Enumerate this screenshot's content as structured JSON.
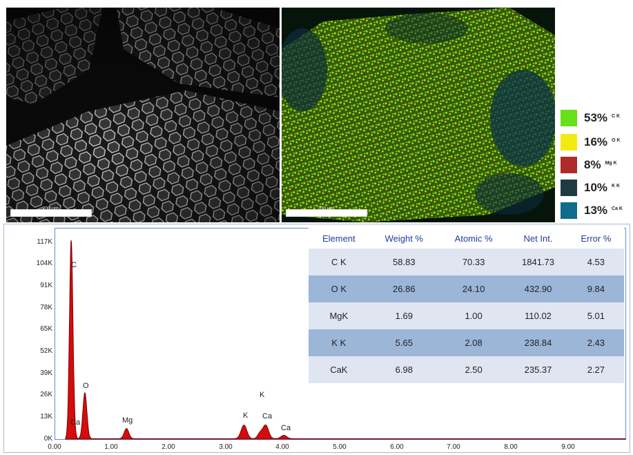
{
  "sem": {
    "scale_label": "200 um"
  },
  "eds_map": {
    "scale_label": "200 um",
    "legend": [
      {
        "percent": "53%",
        "element": "C K",
        "color": "#66e01a"
      },
      {
        "percent": "16%",
        "element": "O K",
        "color": "#f2ea12"
      },
      {
        "percent": "8%",
        "element": "Mg K",
        "color": "#b02a2a"
      },
      {
        "percent": "10%",
        "element": "K K",
        "color": "#1f3a42"
      },
      {
        "percent": "13%",
        "element": "Ca K",
        "color": "#0e6d8a"
      }
    ]
  },
  "table": {
    "headers": [
      "Element",
      "Weight %",
      "Atomic %",
      "Net Int.",
      "Error %"
    ],
    "rows": [
      [
        "C K",
        "58.83",
        "70.33",
        "1841.73",
        "4.53"
      ],
      [
        "O K",
        "26.86",
        "24.10",
        "432.90",
        "9.84"
      ],
      [
        "MgK",
        "1.69",
        "1.00",
        "110.02",
        "5.01"
      ],
      [
        "K K",
        "5.65",
        "2.08",
        "238.84",
        "2.43"
      ],
      [
        "CaK",
        "6.98",
        "2.50",
        "235.37",
        "2.27"
      ]
    ]
  },
  "chart_data": {
    "type": "area",
    "xlim": [
      0,
      10
    ],
    "ylim": [
      0,
      117
    ],
    "x_ticks": [
      "0.00",
      "1.00",
      "2.00",
      "3.00",
      "4.00",
      "5.00",
      "6.00",
      "7.00",
      "8.00",
      "9.00"
    ],
    "y_ticks": [
      "0K",
      "13K",
      "26K",
      "39K",
      "52K",
      "65K",
      "78K",
      "91K",
      "104K",
      "117K"
    ],
    "peaks": [
      {
        "label": "C",
        "x": 0.28,
        "y": 117
      },
      {
        "label": "Ca",
        "x": 0.34,
        "y": 3
      },
      {
        "label": "O",
        "x": 0.52,
        "y": 27
      },
      {
        "label": "Mg",
        "x": 1.25,
        "y": 6
      },
      {
        "label": "K",
        "x": 3.31,
        "y": 8
      },
      {
        "label": "K",
        "x": 3.59,
        "y": 3
      },
      {
        "label": "Ca",
        "x": 3.69,
        "y": 8
      },
      {
        "label": "Ca",
        "x": 4.01,
        "y": 2
      }
    ],
    "colors": {
      "fill": "#d40c0c",
      "stroke": "#7a0000"
    }
  }
}
